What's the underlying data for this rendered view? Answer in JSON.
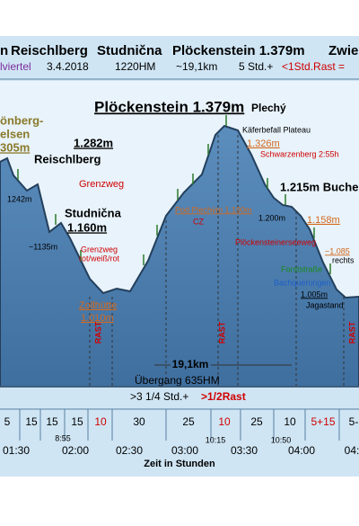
{
  "header": {
    "row1": [
      "n",
      "Reischlberg",
      "Studnična",
      "Plöckenstein 1.379m",
      "Zwie"
    ],
    "row2": [
      "lviertel",
      "3.4.2018",
      "1220HM",
      "~19,1km",
      "5 Std.+",
      "<1Std.Rast ="
    ]
  },
  "profile": {
    "title": "Plöckenstein 1.379m",
    "title_cz": "Plechý",
    "labels": [
      "Käferbefall Plateau",
      "1.326m",
      "Schwarzenberg 2:55h",
      "önberg-",
      "elsen",
      "305m",
      "1.282m",
      "Reischlberg",
      "1242m",
      "Grenzweg",
      "Studnična",
      "1.160m",
      "~1135m",
      "Grenzweg",
      "rot/weiß/rot",
      "Pod Plechým 1.190m",
      "CZ",
      "1.215m Buche",
      "1.200m",
      "1.158m",
      "Plöckensteinerseeweg",
      "~1.085",
      "rechts",
      "Forststraße",
      "Bachquerungen",
      "1.005m",
      "Jagastand",
      "Zollhütte",
      "1.010m"
    ]
  },
  "rests": [
    "RAST",
    "RAST",
    "RAST"
  ],
  "summary": {
    "distance": "19,1km",
    "ascent": "Übergang 635HM",
    "time": ">3 1/4 Std.+",
    "rest": ">1/2Rast"
  },
  "timeline": {
    "durations": [
      "5",
      "15",
      "15",
      "15",
      "10",
      "30",
      "25",
      "10",
      "25",
      "10",
      "5+15",
      "5-"
    ],
    "times": [
      "01:30",
      "8:55",
      "02:00",
      "02:30",
      "03:00",
      "10:15",
      "03:30",
      "10:50",
      "04:00",
      "04:"
    ],
    "axis_label": "Zeit in Stunden"
  }
}
